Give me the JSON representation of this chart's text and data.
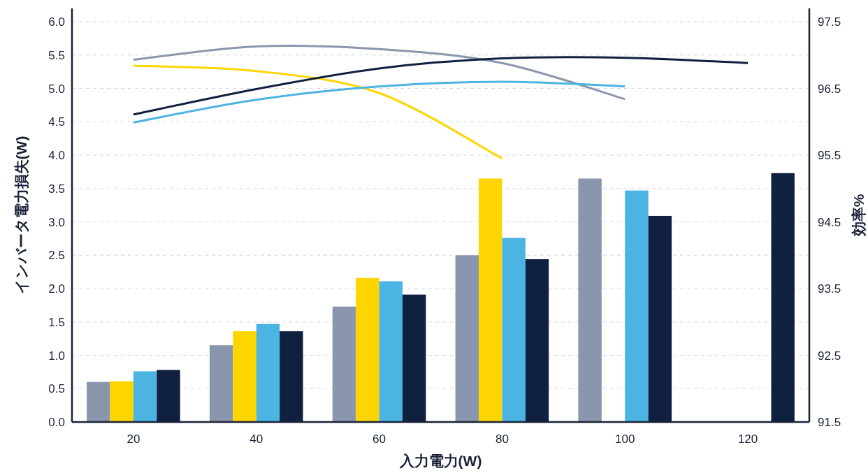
{
  "chart_data": {
    "type": "bar",
    "xlabel": "入力電力(W)",
    "ylabel": "インバータ電力損失(W)",
    "y2label": "効率%",
    "categories": [
      "20",
      "40",
      "60",
      "80",
      "100",
      "120"
    ],
    "series": [
      {
        "color": "#8a96ad",
        "values": [
          0.6,
          1.15,
          1.73,
          2.5,
          3.65,
          null
        ]
      },
      {
        "color": "#fdd500",
        "values": [
          0.61,
          1.36,
          2.16,
          3.65,
          null,
          null
        ]
      },
      {
        "color": "#4bb4e3",
        "values": [
          0.76,
          1.47,
          2.11,
          2.76,
          3.47,
          null
        ]
      },
      {
        "color": "#0f2040",
        "values": [
          0.78,
          1.36,
          1.91,
          2.44,
          3.09,
          3.73
        ]
      },
      {
        "type": "line",
        "axis": "y2",
        "color": "#8a96ad",
        "values": [
          96.93,
          97.13,
          97.09,
          96.88,
          96.34,
          null
        ]
      },
      {
        "type": "line",
        "axis": "y2",
        "color": "#fdd500",
        "values": [
          96.84,
          96.76,
          96.43,
          95.45,
          null,
          null
        ]
      },
      {
        "type": "line",
        "axis": "y2",
        "color": "#4bb4e3",
        "values": [
          95.99,
          96.33,
          96.53,
          96.6,
          96.53,
          null
        ]
      },
      {
        "type": "line",
        "axis": "y2",
        "color": "#0f2040",
        "values": [
          96.11,
          96.49,
          96.8,
          96.95,
          96.96,
          96.88
        ]
      }
    ],
    "ylim": [
      0,
      6.2
    ],
    "yticks": [
      {
        "value": 0,
        "label": "0.0"
      },
      {
        "value": 0.5,
        "label": "0.5"
      },
      {
        "value": 1,
        "label": "1.0"
      },
      {
        "value": 1.5,
        "label": "1.5"
      },
      {
        "value": 2,
        "label": "2.0"
      },
      {
        "value": 2.5,
        "label": "2.5"
      },
      {
        "value": 3,
        "label": "3.0"
      },
      {
        "value": 3.5,
        "label": "3.5"
      },
      {
        "value": 4,
        "label": "4.0"
      },
      {
        "value": 4.5,
        "label": "4.5"
      },
      {
        "value": 5,
        "label": "5.0"
      },
      {
        "value": 5.5,
        "label": "5.5"
      },
      {
        "value": 6,
        "label": "6.0"
      }
    ],
    "y2lim": [
      91.5,
      97.7
    ],
    "y2ticks": [
      91.5,
      92.5,
      93.5,
      94.5,
      95.5,
      96.5,
      97.5
    ],
    "grid": "y",
    "line_style": "solid",
    "marker": "none"
  }
}
